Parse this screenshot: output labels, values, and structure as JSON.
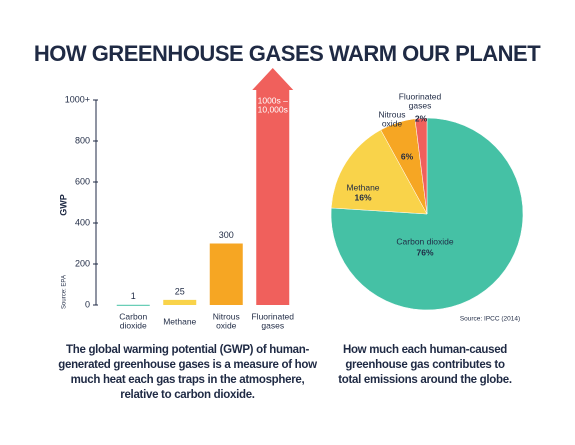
{
  "title": "HOW GREENHOUSE GASES WARM OUR PLANET",
  "chart_data": [
    {
      "type": "bar",
      "y_label": "GWP",
      "source": "Source: EPA",
      "categories": [
        "Carbon\ndioxide",
        "Methane",
        "Nitrous\noxide",
        "Fluorinated\ngases"
      ],
      "values": [
        1,
        25,
        300,
        1000
      ],
      "value_labels": [
        "1",
        "25",
        "300",
        "1000s –\n10,000s"
      ],
      "colors": [
        "#45c1a5",
        "#f9d34a",
        "#f6a623",
        "#f0605c"
      ],
      "ylim": [
        0,
        1000
      ],
      "yticks": [
        0,
        200,
        400,
        600,
        800,
        {
          "value": 1000,
          "label": "1000+"
        }
      ],
      "caption": "The global warming potential (GWP) of human-generated greenhouse gases is a measure of how much heat each gas traps in the atmosphere, relative to carbon dioxide."
    },
    {
      "type": "pie",
      "source": "Source: IPCC (2014)",
      "categories": [
        "Carbon dioxide",
        "Methane",
        "Nitrous\noxide",
        "Fluorinated\ngases"
      ],
      "values": [
        76,
        16,
        6,
        2
      ],
      "value_labels": [
        "76%",
        "16%",
        "6%",
        "2%"
      ],
      "colors": [
        "#45c1a5",
        "#f9d34a",
        "#f6a623",
        "#f0605c"
      ],
      "caption": "How much each human-caused greenhouse gas contributes to total emissions around the globe."
    }
  ]
}
